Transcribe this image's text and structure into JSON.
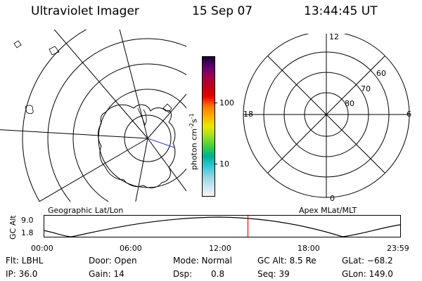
{
  "header": {
    "instrument": "Ultraviolet Imager",
    "date": "15 Sep 07",
    "time": "13:44:45 UT"
  },
  "colorbar": {
    "unit_label": "photon cm",
    "unit_exp1": "-2",
    "unit_s": "s",
    "unit_exp2": "-1",
    "tick_high": "100",
    "tick_low": "10",
    "stops": [
      "#f4f4f4",
      "#c8e6f0",
      "#8fd3e0",
      "#30c8d8",
      "#00b090",
      "#40d040",
      "#9ce020",
      "#e8e800",
      "#ffb000",
      "#ff7800",
      "#e80000",
      "#c00018",
      "#a00050",
      "#600070",
      "#1a0030"
    ]
  },
  "geo_map": {
    "caption": "Geographic Lat/Lon"
  },
  "polar_plot": {
    "caption": "Apex MLat/MLT",
    "mlt_top": "12",
    "mlt_bottom": "0",
    "mlt_left": "18",
    "mlt_right": "6",
    "lat_60": "60",
    "lat_70": "70",
    "lat_80": "80"
  },
  "altitude_plot": {
    "ylabel": "GC Alt",
    "y_top": "9.0",
    "y_bottom": "1.8",
    "x_ticks": [
      "00:00",
      "06:00",
      "12:00",
      "18:00",
      "23:59"
    ],
    "current_time_fraction": 0.573,
    "marker_color": "#ff0000"
  },
  "info": {
    "flt": "Flt: LBHL",
    "door": "Door: Open",
    "mode": "Mode: Normal",
    "gc_alt": "GC Alt: 8.5 Re",
    "glat": "GLat: −68.2",
    "ip": "IP: 36.0",
    "gain": "Gain: 14",
    "dsp_label": "Dsp:",
    "dsp_value": "0.8",
    "seq": "Seq: 39",
    "glon": "GLon: 149.0"
  }
}
